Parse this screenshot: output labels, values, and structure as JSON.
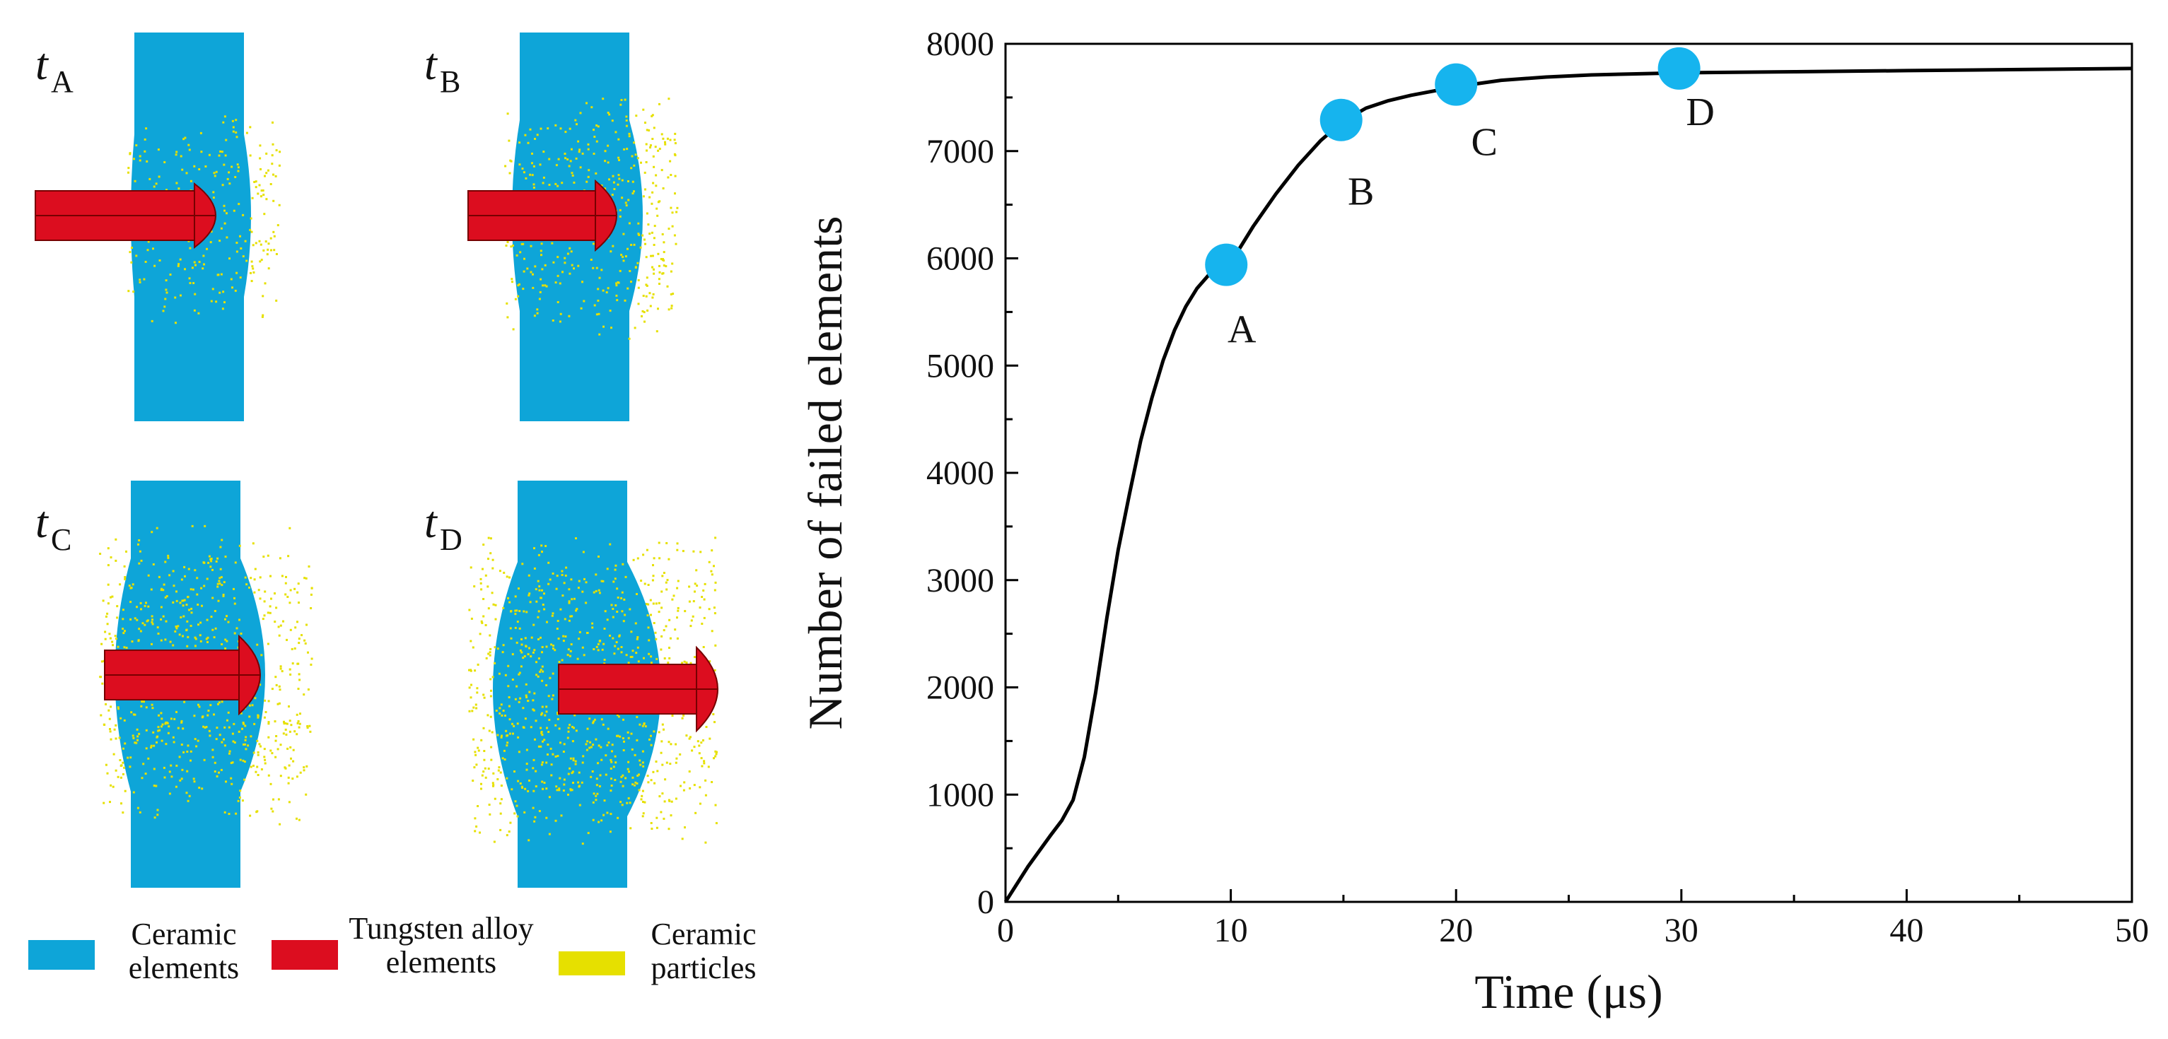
{
  "colors": {
    "ceramic": "#0ea5d8",
    "tungsten": "#dc0d1f",
    "particles": "#e6e000",
    "marker": "#16b4ee",
    "line": "#000000"
  },
  "panels": [
    {
      "id": "A",
      "label": "t",
      "sub": "A",
      "stage": 1
    },
    {
      "id": "B",
      "label": "t",
      "sub": "B",
      "stage": 2
    },
    {
      "id": "C",
      "label": "t",
      "sub": "C",
      "stage": 3
    },
    {
      "id": "D",
      "label": "t",
      "sub": "D",
      "stage": 4
    }
  ],
  "legend": [
    {
      "name": "ceramic-elements",
      "line1": "Ceramic",
      "line2": "elements",
      "color_key": "ceramic"
    },
    {
      "name": "tungsten-alloy-elements",
      "line1": "Tungsten alloy",
      "line2": "elements",
      "color_key": "tungsten"
    },
    {
      "name": "ceramic-particles",
      "line1": "Ceramic",
      "line2": "particles",
      "color_key": "particles"
    }
  ],
  "chart_data": {
    "type": "line",
    "title": "",
    "xlabel": "Time (μs)",
    "ylabel": "Number of failed elements",
    "xlim": [
      0,
      50
    ],
    "ylim": [
      0,
      8000
    ],
    "xticks": [
      0,
      10,
      20,
      30,
      40,
      50
    ],
    "yticks": [
      0,
      1000,
      2000,
      3000,
      4000,
      5000,
      6000,
      7000,
      8000
    ],
    "grid": false,
    "series": [
      {
        "name": "failed elements",
        "x": [
          0,
          1,
          2,
          2.5,
          3,
          3.5,
          4,
          4.5,
          5,
          5.5,
          6,
          6.5,
          7,
          7.5,
          8,
          8.5,
          9,
          9.5,
          10,
          11,
          12,
          13,
          14,
          15,
          16,
          17,
          18,
          19,
          20,
          21,
          22,
          24,
          26,
          28,
          30,
          35,
          40,
          45,
          50
        ],
        "y": [
          0,
          330,
          620,
          760,
          950,
          1350,
          1950,
          2650,
          3280,
          3800,
          4300,
          4700,
          5050,
          5330,
          5550,
          5720,
          5840,
          5900,
          5960,
          6300,
          6600,
          6870,
          7100,
          7280,
          7400,
          7470,
          7520,
          7560,
          7600,
          7630,
          7660,
          7690,
          7710,
          7720,
          7730,
          7740,
          7750,
          7760,
          7770
        ]
      }
    ],
    "points": [
      {
        "label": "A",
        "x": 9.8,
        "y": 5940
      },
      {
        "label": "B",
        "x": 14.9,
        "y": 7290
      },
      {
        "label": "C",
        "x": 20,
        "y": 7620
      },
      {
        "label": "D",
        "x": 29.9,
        "y": 7770
      }
    ]
  }
}
